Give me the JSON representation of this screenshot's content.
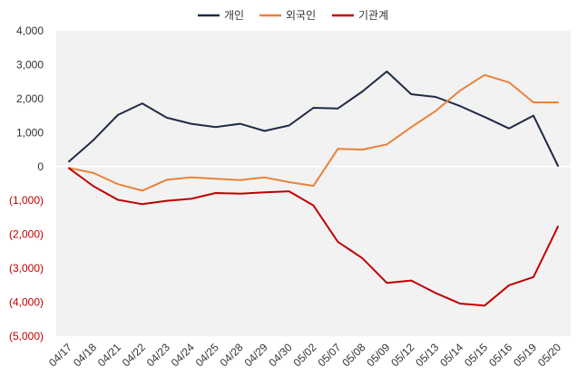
{
  "chart_data": {
    "type": "line",
    "categories": [
      "04/17",
      "04/18",
      "04/21",
      "04/22",
      "04/23",
      "04/24",
      "04/25",
      "04/28",
      "04/29",
      "04/30",
      "05/02",
      "05/07",
      "05/08",
      "05/09",
      "05/12",
      "05/13",
      "05/14",
      "05/15",
      "05/16",
      "05/19",
      "05/20"
    ],
    "series": [
      {
        "name": "개인",
        "color": "#1f2a44",
        "values": [
          150,
          780,
          1520,
          1860,
          1440,
          1260,
          1160,
          1260,
          1050,
          1210,
          1730,
          1710,
          2210,
          2800,
          2130,
          2050,
          1780,
          1460,
          1120,
          1500,
          20
        ]
      },
      {
        "name": "외국인",
        "color": "#e8823a",
        "values": [
          -40,
          -190,
          -520,
          -710,
          -390,
          -320,
          -360,
          -400,
          -320,
          -460,
          -570,
          520,
          500,
          650,
          1160,
          1640,
          2240,
          2700,
          2480,
          1890,
          1890
        ]
      },
      {
        "name": "기관계",
        "color": "#c00000",
        "values": [
          -50,
          -580,
          -980,
          -1110,
          -1010,
          -950,
          -780,
          -800,
          -760,
          -730,
          -1150,
          -2220,
          -2700,
          -3430,
          -3360,
          -3730,
          -4040,
          -4100,
          -3500,
          -3260,
          -1770
        ]
      }
    ],
    "ylim": [
      -5000,
      4000
    ],
    "yticks": [
      4000,
      3000,
      2000,
      1000,
      0,
      -1000,
      -2000,
      -3000,
      -4000,
      -5000
    ],
    "ytick_labels": [
      "4,000",
      "3,000",
      "2,000",
      "1,000",
      "0",
      "(1,000)",
      "(2,000)",
      "(3,000)",
      "(4,000)",
      "(5,000)"
    ],
    "positive_tick_color": "#333333",
    "negative_tick_color": "#c00000",
    "plot_background": "#f2f2f2",
    "legend_position": "top-center",
    "grid": false
  }
}
